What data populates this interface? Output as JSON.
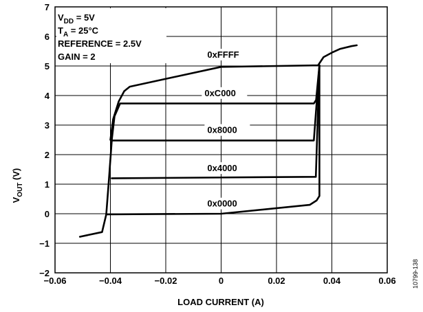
{
  "chart_data": {
    "type": "line",
    "xlabel": "LOAD CURRENT (A)",
    "ylabel": {
      "main": "V",
      "sub": "OUT",
      "rest": " (V)"
    },
    "xlim": [
      -0.06,
      0.06
    ],
    "ylim": [
      -2,
      7
    ],
    "x_ticks": [
      {
        "value": -0.06,
        "label": "−0.06"
      },
      {
        "value": -0.04,
        "label": "−0.04"
      },
      {
        "value": -0.02,
        "label": "−0.02"
      },
      {
        "value": 0,
        "label": "0"
      },
      {
        "value": 0.02,
        "label": "0.02"
      },
      {
        "value": 0.04,
        "label": "0.04"
      },
      {
        "value": 0.06,
        "label": "0.06"
      }
    ],
    "y_ticks": [
      {
        "value": -2,
        "label": "−2"
      },
      {
        "value": -1,
        "label": "−1"
      },
      {
        "value": 0,
        "label": "0"
      },
      {
        "value": 1,
        "label": "1"
      },
      {
        "value": 2,
        "label": "2"
      },
      {
        "value": 3,
        "label": "3"
      },
      {
        "value": 4,
        "label": "4"
      },
      {
        "value": 5,
        "label": "5"
      },
      {
        "value": 6,
        "label": "6"
      },
      {
        "value": 7,
        "label": "7"
      }
    ],
    "grid": true,
    "conditions": [
      {
        "main": "V",
        "sub": "DD",
        "rest": " = 5V"
      },
      {
        "main": "T",
        "sub": "A",
        "rest": " = 25°C"
      },
      {
        "main": "REFERENCE = 2.5V",
        "sub": "",
        "rest": ""
      },
      {
        "main": "GAIN = 2",
        "sub": "",
        "rest": ""
      }
    ],
    "series": [
      {
        "name": "0xFFFF",
        "label_at": [
          -0.005,
          5.28
        ],
        "points": [
          [
            -0.04,
            2.5
          ],
          [
            -0.039,
            3.2
          ],
          [
            -0.037,
            3.8
          ],
          [
            -0.035,
            4.15
          ],
          [
            -0.033,
            4.3
          ],
          [
            0,
            4.97
          ],
          [
            0.035,
            5.02
          ],
          [
            0.037,
            5.3
          ],
          [
            0.04,
            5.45
          ],
          [
            0.043,
            5.58
          ],
          [
            0.047,
            5.67
          ],
          [
            0.049,
            5.7
          ]
        ]
      },
      {
        "name": "0xC000",
        "label_at": [
          -0.006,
          3.98
        ],
        "points": [
          [
            -0.0395,
            2.5
          ],
          [
            -0.0385,
            3.3
          ],
          [
            -0.0365,
            3.73
          ],
          [
            0.0335,
            3.73
          ],
          [
            0.0343,
            3.85
          ],
          [
            0.0355,
            5.02
          ]
        ]
      },
      {
        "name": "0x8000",
        "label_at": [
          -0.005,
          2.73
        ],
        "points": [
          [
            -0.0395,
            2.48
          ],
          [
            0.0335,
            2.48
          ],
          [
            0.0355,
            5.02
          ]
        ]
      },
      {
        "name": "0x4000",
        "label_at": [
          -0.005,
          1.44
        ],
        "points": [
          [
            -0.0395,
            1.2
          ],
          [
            0.0342,
            1.25
          ],
          [
            0.0355,
            5.02
          ]
        ]
      },
      {
        "name": "0x0000",
        "label_at": [
          -0.005,
          0.24
        ],
        "points": [
          [
            -0.051,
            -0.78
          ],
          [
            -0.043,
            -0.62
          ],
          [
            -0.0415,
            -0.02
          ],
          [
            0,
            0
          ],
          [
            0.032,
            0.3
          ],
          [
            0.0345,
            0.45
          ],
          [
            0.0355,
            0.6
          ],
          [
            0.0355,
            5.02
          ]
        ]
      },
      {
        "name": "",
        "label_at": null,
        "points": [
          [
            -0.0415,
            -0.02
          ],
          [
            -0.0405,
            1.2
          ],
          [
            -0.0395,
            2.48
          ]
        ]
      }
    ]
  },
  "figure_id": "10799-138"
}
